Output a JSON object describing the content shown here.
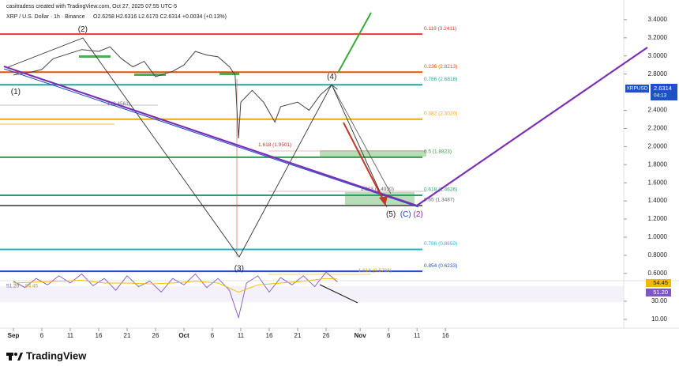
{
  "header": {
    "credit": "casitradess created with TradingView.com, Oct 27, 2025 07:55 UTC-5",
    "symbol": "XRP / U.S. Dollar · 1h · Binance",
    "ohlc": "O2.6258 H2.6316 L2.6170 C2.6314 +0.0034 (+0.13%)",
    "ticker": "XRPUSD",
    "countdown": "04:13",
    "brand": "TradingView"
  },
  "chart_data": [
    {
      "type": "line",
      "name": "XRPUSD",
      "color": "#444444",
      "x": [
        0,
        3,
        5,
        7,
        10,
        12,
        15,
        17,
        19,
        21,
        23,
        25,
        28,
        30,
        32,
        34,
        36,
        38,
        39,
        39.6,
        40,
        42,
        44,
        46,
        47,
        50,
        52,
        54,
        56,
        57
      ],
      "values": [
        2.79,
        2.82,
        2.85,
        2.97,
        3.03,
        3.07,
        3.05,
        3.1,
        2.97,
        2.88,
        2.94,
        2.77,
        2.83,
        2.9,
        3.05,
        3.01,
        2.99,
        2.88,
        2.79,
        2.09,
        2.49,
        2.62,
        2.49,
        2.27,
        2.44,
        2.49,
        2.4,
        2.57,
        2.68,
        2.6314
      ],
      "xlim": [
        -2.36,
        107.36
      ],
      "xticks": [
        {
          "value": 0,
          "label": "Sep"
        },
        {
          "value": 5,
          "label": "6"
        },
        {
          "value": 10,
          "label": "11"
        },
        {
          "value": 15,
          "label": "16"
        },
        {
          "value": 20,
          "label": "21"
        },
        {
          "value": 25,
          "label": "26"
        },
        {
          "value": 30,
          "label": "Oct"
        },
        {
          "value": 35,
          "label": "6"
        },
        {
          "value": 40,
          "label": "11"
        },
        {
          "value": 45,
          "label": "16"
        },
        {
          "value": 50,
          "label": "21"
        },
        {
          "value": 55,
          "label": "26"
        },
        {
          "value": 61,
          "label": "Nov"
        },
        {
          "value": 66,
          "label": "6"
        },
        {
          "value": 71,
          "label": "11"
        },
        {
          "value": 76,
          "label": "16"
        }
      ],
      "ylim": [
        0.52,
        3.53
      ],
      "yticks": [
        {
          "value": 3.4,
          "label": "3.4000"
        },
        {
          "value": 3.2,
          "label": "3.2000"
        },
        {
          "value": 3.0,
          "label": "3.0000"
        },
        {
          "value": 2.8,
          "label": "2.8000"
        },
        {
          "value": 2.4,
          "label": "2.4000"
        },
        {
          "value": 2.2,
          "label": "2.2000"
        },
        {
          "value": 2.0,
          "label": "2.0000"
        },
        {
          "value": 1.8,
          "label": "1.8000"
        },
        {
          "value": 1.6,
          "label": "1.6000"
        },
        {
          "value": 1.4,
          "label": "1.4000"
        },
        {
          "value": 1.2,
          "label": "1.2000"
        },
        {
          "value": 1.0,
          "label": "1.0000"
        },
        {
          "value": 0.8,
          "label": "0.8000"
        },
        {
          "value": 0.6,
          "label": "0.6000"
        }
      ],
      "grid": false,
      "levels": [
        {
          "label": "0.118 (3.2411)",
          "value": 3.2411,
          "color": "#e53935"
        },
        {
          "label": "0.236 (2.8213)",
          "value": 2.8213,
          "color": "#e65100"
        },
        {
          "label": "0.786 (2.6818)",
          "value": 2.6818,
          "color": "#26a69a"
        },
        {
          "label": "0.382 (2.3020)",
          "value": 2.302,
          "color": "#f0a500"
        },
        {
          "label": "0.5 (1.8823)",
          "value": 1.8823,
          "color": "#2e9e44"
        },
        {
          "label": "0.618 (1.4626)",
          "value": 1.4626,
          "color": "#2e9e6e"
        },
        {
          "label": "0.65 (1.3487)",
          "value": 1.3487,
          "color": "#666666"
        },
        {
          "label": "0.786 (0.8650)",
          "value": 0.865,
          "color": "#26b5c6"
        },
        {
          "label": "0.854 (0.6233)",
          "value": 0.6233,
          "color": "#1e50c8"
        }
      ],
      "annotations": [
        {
          "text": "(1)",
          "x": 0.4,
          "y": 2.6,
          "color": "#222222"
        },
        {
          "text": "(2)",
          "x": 12.2,
          "y": 3.29,
          "color": "#222222"
        },
        {
          "text": "(3)",
          "x": 39.7,
          "y": 0.65,
          "color": "#222222"
        },
        {
          "text": "(4)",
          "x": 56,
          "y": 2.77,
          "color": "#222222"
        },
        {
          "text": "(5)",
          "x": 66.4,
          "y": 1.25,
          "color": "#222222"
        },
        {
          "text": "(C)",
          "x": 69,
          "y": 1.25,
          "color": "#1e50c8"
        },
        {
          "text": "(2)",
          "x": 71.2,
          "y": 1.25,
          "color": "#7b2fb5"
        },
        {
          "text": "1 (2.4561)",
          "x": 18.5,
          "y": 2.47,
          "color": "#666666"
        },
        {
          "text": "1.618 (1.9501)",
          "x": 46,
          "y": 2.02,
          "color": "#c0392b"
        },
        {
          "text": "1.618 (1.4930)",
          "x": 64,
          "y": 1.53,
          "color": "#666666"
        },
        {
          "text": "1.618 (0.5788)",
          "x": 63.6,
          "y": 0.63,
          "color": "#d4a017"
        }
      ]
    },
    {
      "type": "line",
      "name": "RSI",
      "xlim": [
        -2.36,
        107.36
      ],
      "ylim": [
        0,
        61.3
      ],
      "yticks": [
        {
          "value": 30,
          "label": "30.00"
        },
        {
          "value": 10,
          "label": "10.00"
        }
      ],
      "series": [
        {
          "color": "#7e57c2",
          "x": [
            0,
            2,
            4,
            6,
            8,
            10,
            12,
            14,
            16,
            18,
            20,
            22,
            24,
            26,
            28,
            30,
            32,
            34,
            36,
            38,
            39.6,
            41,
            43,
            45,
            47,
            49,
            51,
            53,
            55,
            57
          ],
          "values": [
            52,
            45,
            55,
            48,
            58,
            50,
            60,
            47,
            55,
            42,
            58,
            46,
            52,
            40,
            55,
            48,
            60,
            45,
            55,
            42,
            12,
            50,
            58,
            40,
            56,
            48,
            58,
            46,
            62,
            51.2
          ],
          "value_labels": [
            null,
            null,
            null,
            null,
            null,
            null,
            null,
            null,
            null,
            null,
            null,
            null,
            null,
            null,
            null,
            null,
            null,
            null,
            null,
            null,
            null,
            null,
            null,
            null,
            null,
            null,
            null,
            null,
            null,
            "51.20"
          ]
        },
        {
          "color": "#f5b800",
          "x": [
            0,
            4,
            8,
            12,
            16,
            20,
            24,
            28,
            32,
            36,
            39.6,
            43,
            47,
            51,
            55,
            57
          ],
          "values": [
            50,
            51,
            52,
            53,
            50,
            50,
            49,
            50,
            52,
            50,
            40,
            48,
            50,
            52,
            55,
            54.45
          ]
        }
      ]
    }
  ]
}
